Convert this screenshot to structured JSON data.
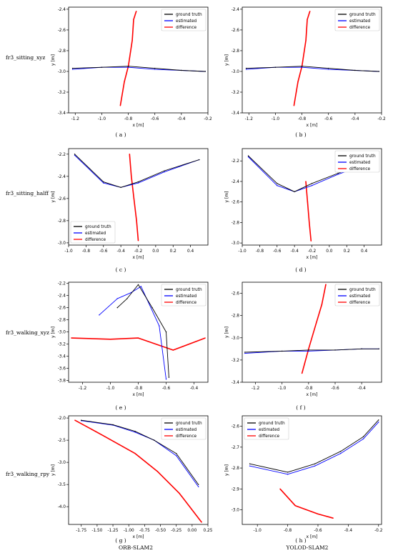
{
  "row_labels": [
    "fr3_sitting_xyz",
    "fr3_sitting_halff",
    "fr3_walking_xyz",
    "fr3_walking_rpy"
  ],
  "subfigure_labels": [
    "( a )",
    "( b )",
    "( c )",
    "( d )",
    "( e )",
    "( f )",
    "( g )",
    "( h )"
  ],
  "column_labels": [
    "ORB-SLAM2",
    "YOLOD-SLAM2"
  ],
  "colors": {
    "ground_truth": "#000000",
    "estimated": "#0000ff",
    "difference": "#ff0000"
  },
  "chart_data": [
    {
      "id": "a",
      "type": "line",
      "xlabel": "x [m]",
      "ylabel": "y [m]",
      "xlim": [
        -1.25,
        -0.2
      ],
      "ylim": [
        -3.4,
        -2.38
      ],
      "xticks": [
        "-1.2",
        "-1.0",
        "-0.8",
        "-0.6",
        "-0.4",
        "-0.2"
      ],
      "xtick_values": [
        -1.2,
        -1.0,
        -0.8,
        -0.6,
        -0.4,
        -0.2
      ],
      "yticks": [
        "-2.4",
        "-2.6",
        "-2.8",
        "-3.0",
        "-3.2",
        "-3.4"
      ],
      "ytick_values": [
        -2.4,
        -2.6,
        -2.8,
        -3.0,
        -3.2,
        -3.4
      ],
      "legend": "top-right",
      "series": [
        {
          "name": "ground truth",
          "x": [
            -1.22,
            -1.0,
            -0.8,
            -0.6,
            -0.4,
            -0.22
          ],
          "y": [
            -2.97,
            -2.96,
            -2.95,
            -2.97,
            -2.99,
            -3.0
          ]
        },
        {
          "name": "estimated",
          "x": [
            -1.22,
            -1.0,
            -0.8,
            -0.6,
            -0.4,
            -0.22
          ],
          "y": [
            -2.98,
            -2.96,
            -2.96,
            -2.98,
            -2.99,
            -3.0
          ]
        },
        {
          "name": "difference",
          "x": [
            -0.86,
            -0.83,
            -0.8,
            -0.77,
            -0.76,
            -0.74
          ],
          "y": [
            -3.33,
            -3.1,
            -2.95,
            -2.7,
            -2.5,
            -2.42
          ]
        }
      ]
    },
    {
      "id": "b",
      "type": "line",
      "xlabel": "x [m]",
      "ylabel": "y [m]",
      "xlim": [
        -1.25,
        -0.2
      ],
      "ylim": [
        -3.4,
        -2.38
      ],
      "xticks": [
        "-1.2",
        "-1.0",
        "-0.8",
        "-0.6",
        "-0.4",
        "-0.2"
      ],
      "xtick_values": [
        -1.2,
        -1.0,
        -0.8,
        -0.6,
        -0.4,
        -0.2
      ],
      "yticks": [
        "-2.4",
        "-2.6",
        "-2.8",
        "-3.0",
        "-3.2",
        "-3.4"
      ],
      "ytick_values": [
        -2.4,
        -2.6,
        -2.8,
        -3.0,
        -3.2,
        -3.4
      ],
      "legend": "top-right",
      "series": [
        {
          "name": "ground truth",
          "x": [
            -1.22,
            -1.0,
            -0.8,
            -0.6,
            -0.4,
            -0.22
          ],
          "y": [
            -2.97,
            -2.96,
            -2.95,
            -2.97,
            -2.99,
            -3.0
          ]
        },
        {
          "name": "estimated",
          "x": [
            -1.22,
            -1.0,
            -0.8,
            -0.6,
            -0.4,
            -0.22
          ],
          "y": [
            -2.98,
            -2.96,
            -2.96,
            -2.98,
            -2.99,
            -3.0
          ]
        },
        {
          "name": "difference",
          "x": [
            -0.86,
            -0.83,
            -0.8,
            -0.77,
            -0.76,
            -0.74
          ],
          "y": [
            -3.33,
            -3.1,
            -2.95,
            -2.7,
            -2.5,
            -2.42
          ]
        }
      ]
    },
    {
      "id": "c",
      "type": "line",
      "xlabel": "x [m]",
      "ylabel": "y [m]",
      "xlim": [
        -1.0,
        0.6
      ],
      "ylim": [
        -3.02,
        -2.15
      ],
      "xticks": [
        "-1.0",
        "-0.8",
        "-0.6",
        "-0.4",
        "-0.2",
        "0.0",
        "0.2",
        "0.4"
      ],
      "xtick_values": [
        -1.0,
        -0.8,
        -0.6,
        -0.4,
        -0.2,
        0.0,
        0.2,
        0.4
      ],
      "yticks": [
        "-2.2",
        "-2.4",
        "-2.6",
        "-2.8",
        "-3.0"
      ],
      "ytick_values": [
        -2.2,
        -2.4,
        -2.6,
        -2.8,
        -3.0
      ],
      "legend": "bottom-left",
      "series": [
        {
          "name": "ground truth",
          "x": [
            -0.93,
            -0.6,
            -0.4,
            -0.2,
            0.1,
            0.5
          ],
          "y": [
            -2.2,
            -2.45,
            -2.5,
            -2.45,
            -2.35,
            -2.25
          ]
        },
        {
          "name": "estimated",
          "x": [
            -0.93,
            -0.6,
            -0.4,
            -0.2,
            0.1,
            0.5
          ],
          "y": [
            -2.21,
            -2.46,
            -2.5,
            -2.46,
            -2.36,
            -2.25
          ]
        },
        {
          "name": "difference",
          "x": [
            -0.3,
            -0.28,
            -0.25,
            -0.22,
            -0.2
          ],
          "y": [
            -2.2,
            -2.4,
            -2.6,
            -2.8,
            -2.98
          ]
        }
      ]
    },
    {
      "id": "d",
      "type": "line",
      "xlabel": "x [m]",
      "ylabel": "y [m]",
      "xlim": [
        -1.0,
        0.6
      ],
      "ylim": [
        -3.02,
        -2.08
      ],
      "xticks": [
        "-1.0",
        "-0.8",
        "-0.6",
        "-0.4",
        "-0.2",
        "0.0",
        "0.2",
        "0.4"
      ],
      "xtick_values": [
        -1.0,
        -0.8,
        -0.6,
        -0.4,
        -0.2,
        0.0,
        0.2,
        0.4
      ],
      "yticks": [
        "-2.2",
        "-2.4",
        "-2.6",
        "-2.8",
        "-3.0"
      ],
      "ytick_values": [
        -2.2,
        -2.4,
        -2.6,
        -2.8,
        -3.0
      ],
      "legend": "top-right",
      "series": [
        {
          "name": "ground truth",
          "x": [
            -0.93,
            -0.6,
            -0.4,
            -0.2,
            0.1,
            0.5
          ],
          "y": [
            -2.15,
            -2.42,
            -2.5,
            -2.42,
            -2.32,
            -2.2
          ]
        },
        {
          "name": "estimated",
          "x": [
            -0.93,
            -0.6,
            -0.4,
            -0.2,
            0.1,
            0.5
          ],
          "y": [
            -2.16,
            -2.44,
            -2.5,
            -2.44,
            -2.33,
            -2.21
          ]
        },
        {
          "name": "difference",
          "x": [
            -0.27,
            -0.25,
            -0.23,
            -0.21
          ],
          "y": [
            -2.4,
            -2.6,
            -2.8,
            -2.98
          ]
        }
      ]
    },
    {
      "id": "e",
      "type": "line",
      "xlabel": "x [m]",
      "ylabel": "y [m]",
      "xlim": [
        -1.3,
        -0.3
      ],
      "ylim": [
        -3.83,
        -2.18
      ],
      "xticks": [
        "-1.2",
        "-1.0",
        "-0.8",
        "-0.6",
        "-0.4"
      ],
      "xtick_values": [
        -1.2,
        -1.0,
        -0.8,
        -0.6,
        -0.4
      ],
      "yticks": [
        "-2.2",
        "-2.4",
        "-2.6",
        "-2.8",
        "-3.0",
        "-3.2",
        "-3.4",
        "-3.6",
        "-3.8"
      ],
      "ytick_values": [
        -2.2,
        -2.4,
        -2.6,
        -2.8,
        -3.0,
        -3.2,
        -3.4,
        -3.6,
        -3.8
      ],
      "legend": "top-right",
      "series": [
        {
          "name": "ground truth",
          "x": [
            -0.95,
            -0.88,
            -0.8,
            -0.7,
            -0.6,
            -0.58
          ],
          "y": [
            -2.6,
            -2.45,
            -2.22,
            -2.6,
            -3.0,
            -3.75
          ]
        },
        {
          "name": "estimated",
          "x": [
            -1.08,
            -0.95,
            -0.85,
            -0.78,
            -0.65,
            -0.6
          ],
          "y": [
            -2.72,
            -2.45,
            -2.35,
            -2.25,
            -2.9,
            -3.78
          ]
        },
        {
          "name": "difference",
          "x": [
            -1.28,
            -1.0,
            -0.8,
            -0.55,
            -0.32
          ],
          "y": [
            -3.1,
            -3.12,
            -3.1,
            -3.3,
            -3.1
          ]
        }
      ]
    },
    {
      "id": "f",
      "type": "line",
      "xlabel": "x [m]",
      "ylabel": "y [m]",
      "xlim": [
        -1.3,
        -0.25
      ],
      "ylim": [
        -3.4,
        -2.5
      ],
      "xticks": [
        "-1.2",
        "-1.0",
        "-0.8",
        "-0.6",
        "-0.4"
      ],
      "xtick_values": [
        -1.2,
        -1.0,
        -0.8,
        -0.6,
        -0.4
      ],
      "yticks": [
        "-2.6",
        "-2.8",
        "-3.0",
        "-3.2",
        "-3.4"
      ],
      "ytick_values": [
        -2.6,
        -2.8,
        -3.0,
        -3.2,
        -3.4
      ],
      "legend": "top-right",
      "series": [
        {
          "name": "ground truth",
          "x": [
            -1.28,
            -1.0,
            -0.8,
            -0.6,
            -0.4,
            -0.27
          ],
          "y": [
            -3.13,
            -3.12,
            -3.11,
            -3.11,
            -3.1,
            -3.1
          ]
        },
        {
          "name": "estimated",
          "x": [
            -1.28,
            -1.0,
            -0.8,
            -0.6,
            -0.4,
            -0.27
          ],
          "y": [
            -3.14,
            -3.12,
            -3.12,
            -3.11,
            -3.1,
            -3.1
          ]
        },
        {
          "name": "difference",
          "x": [
            -0.85,
            -0.8,
            -0.75,
            -0.7,
            -0.67
          ],
          "y": [
            -3.32,
            -3.1,
            -2.9,
            -2.7,
            -2.52
          ]
        }
      ]
    },
    {
      "id": "g",
      "type": "line",
      "xlabel": "x [m]",
      "ylabel": "y [m]",
      "xlim": [
        -1.95,
        0.25
      ],
      "ylim": [
        -4.4,
        -1.95
      ],
      "xticks": [
        "-1.75",
        "-1.50",
        "-1.25",
        "-1.00",
        "-0.75",
        "-0.50",
        "-0.25",
        "0.00",
        "0.25"
      ],
      "xtick_values": [
        -1.75,
        -1.5,
        -1.25,
        -1.0,
        -0.75,
        -0.5,
        -0.25,
        0.0,
        0.25
      ],
      "yticks": [
        "-2.0",
        "-2.5",
        "-3.0",
        "-3.5",
        "-4.0"
      ],
      "ytick_values": [
        -2.0,
        -2.5,
        -3.0,
        -3.5,
        -4.0
      ],
      "legend": "top-right",
      "series": [
        {
          "name": "ground truth",
          "x": [
            -1.75,
            -1.25,
            -0.9,
            -0.6,
            -0.25,
            0.1
          ],
          "y": [
            -2.05,
            -2.15,
            -2.3,
            -2.5,
            -2.8,
            -3.5
          ]
        },
        {
          "name": "estimated",
          "x": [
            -1.75,
            -1.25,
            -0.9,
            -0.6,
            -0.25,
            0.1
          ],
          "y": [
            -2.06,
            -2.16,
            -2.32,
            -2.5,
            -2.85,
            -3.55
          ]
        },
        {
          "name": "difference",
          "x": [
            -1.85,
            -1.4,
            -0.9,
            -0.55,
            -0.2,
            0.15
          ],
          "y": [
            -2.05,
            -2.4,
            -2.8,
            -3.2,
            -3.7,
            -4.35
          ]
        }
      ]
    },
    {
      "id": "h",
      "type": "line",
      "xlabel": "x [m]",
      "ylabel": "y [m]",
      "xlim": [
        -1.1,
        -0.18
      ],
      "ylim": [
        -3.07,
        -2.55
      ],
      "xticks": [
        "-1.0",
        "-0.8",
        "-0.6",
        "-0.4",
        "-0.2"
      ],
      "xtick_values": [
        -1.0,
        -0.8,
        -0.6,
        -0.4,
        -0.2
      ],
      "yticks": [
        "-2.6",
        "-2.7",
        "-2.8",
        "-2.9",
        "-3.0"
      ],
      "ytick_values": [
        -2.6,
        -2.7,
        -2.8,
        -2.9,
        -3.0
      ],
      "legend": "top-left",
      "series": [
        {
          "name": "ground truth",
          "x": [
            -1.05,
            -0.8,
            -0.62,
            -0.45,
            -0.3,
            -0.2
          ],
          "y": [
            -2.78,
            -2.82,
            -2.78,
            -2.72,
            -2.65,
            -2.57
          ]
        },
        {
          "name": "estimated",
          "x": [
            -1.05,
            -0.8,
            -0.62,
            -0.45,
            -0.3,
            -0.2
          ],
          "y": [
            -2.79,
            -2.83,
            -2.79,
            -2.73,
            -2.66,
            -2.58
          ]
        },
        {
          "name": "difference",
          "x": [
            -0.85,
            -0.75,
            -0.6,
            -0.5
          ],
          "y": [
            -2.9,
            -2.98,
            -3.02,
            -3.04
          ]
        }
      ]
    }
  ]
}
